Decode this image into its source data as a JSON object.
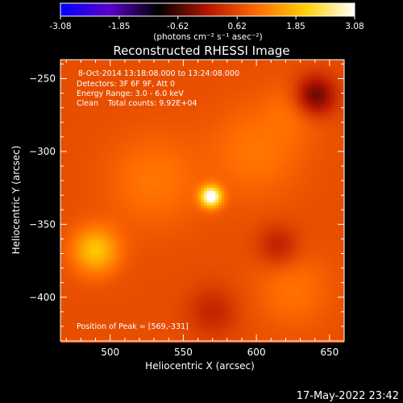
{
  "chart_data": {
    "type": "heatmap",
    "title": "Reconstructed RHESSI Image",
    "colorbar": {
      "ticks": [
        "-3.08",
        "-1.85",
        "-0.62",
        "0.62",
        "1.85",
        "3.08"
      ],
      "tick_values": [
        -3.08,
        -1.85,
        -0.62,
        0.62,
        1.85,
        3.08
      ],
      "range": [
        -3.08,
        3.08
      ],
      "unit_label": "(photons cm⁻² s⁻¹ asec⁻²)",
      "colors": [
        "#0000ff",
        "#5a00c8",
        "#000000",
        "#b41400",
        "#ff6a00",
        "#ffd000",
        "#ffffff"
      ]
    },
    "xlabel": "Heliocentric X (arcsec)",
    "ylabel": "Heliocentric Y (arcsec)",
    "xlim": [
      466,
      660
    ],
    "ylim": [
      -430,
      -237
    ],
    "xticks": [
      500,
      550,
      600,
      650
    ],
    "xtick_labels": [
      "500",
      "550",
      "600",
      "650"
    ],
    "yticks": [
      -250,
      -300,
      -350,
      -400
    ],
    "ytick_labels": [
      "−250",
      "−300",
      "−350",
      "−400"
    ],
    "annotations": [
      "8-Oct-2014 13:18:08.000 to 13:24:08.000",
      "Detectors: 3F 6F 9F, Att 0",
      "Energy Range: 3.0 - 6.0 keV",
      "Clean    Total counts: 9.92E+04"
    ],
    "peak_label": "Position of Peak = [569,-331]",
    "peak": {
      "x": 569,
      "y": -331,
      "value": 3.08
    },
    "background_level": 0.7,
    "features": [
      {
        "x": 490,
        "y": -368,
        "value": 1.25,
        "sigma": 11
      },
      {
        "x": 569,
        "y": -331,
        "value": 2.6,
        "sigma": 5
      },
      {
        "x": 530,
        "y": -320,
        "value": 0.45,
        "sigma": 22
      },
      {
        "x": 600,
        "y": -300,
        "value": 0.45,
        "sigma": 22
      },
      {
        "x": 625,
        "y": -395,
        "value": 0.4,
        "sigma": 18
      },
      {
        "x": 628,
        "y": -270,
        "value": 0.35,
        "sigma": 14
      },
      {
        "x": 640,
        "y": -262,
        "value": -1.3,
        "sigma": 10
      },
      {
        "x": 615,
        "y": -365,
        "value": -0.6,
        "sigma": 10
      },
      {
        "x": 570,
        "y": -410,
        "value": -0.5,
        "sigma": 12
      }
    ],
    "grid": false
  },
  "timestamp": "17-May-2022 23:42"
}
